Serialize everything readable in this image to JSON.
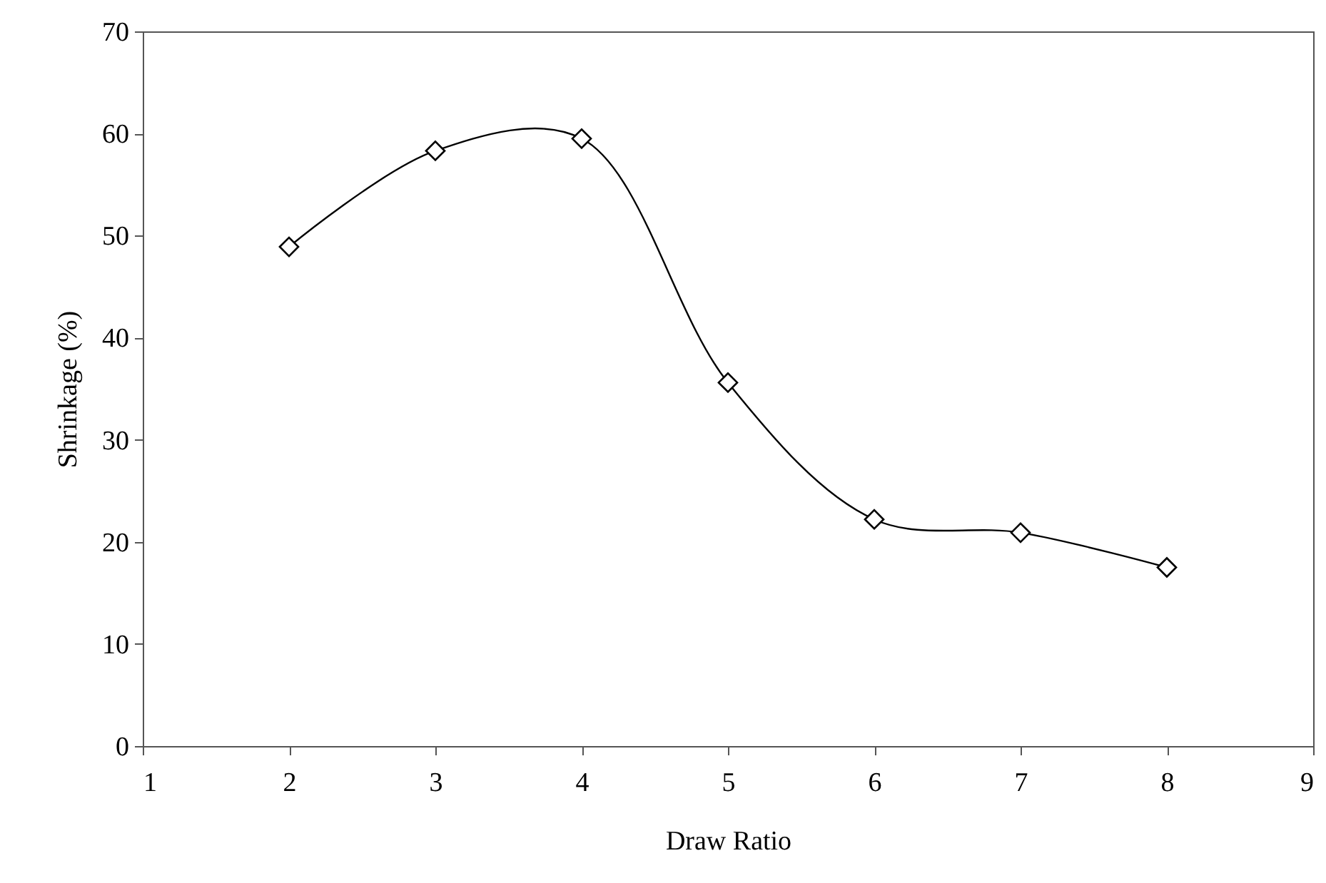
{
  "chart_data": {
    "type": "line",
    "xlabel": "Draw Ratio",
    "ylabel": "Shrinkage (%)",
    "x": [
      2,
      3,
      4,
      5,
      6,
      7,
      8
    ],
    "series": [
      {
        "color": "#000000",
        "values": [
          48.9,
          58.3,
          59.5,
          35.6,
          22.2,
          20.9,
          17.5
        ]
      }
    ],
    "xlim": [
      1,
      9
    ],
    "xticks": [
      1,
      2,
      3,
      4,
      5,
      6,
      7,
      8,
      9
    ],
    "ylim": [
      0,
      70
    ],
    "yticks": [
      0,
      10,
      20,
      30,
      40,
      50,
      60,
      70
    ],
    "marker": "diamond",
    "line_style": "solid",
    "grid": false
  }
}
